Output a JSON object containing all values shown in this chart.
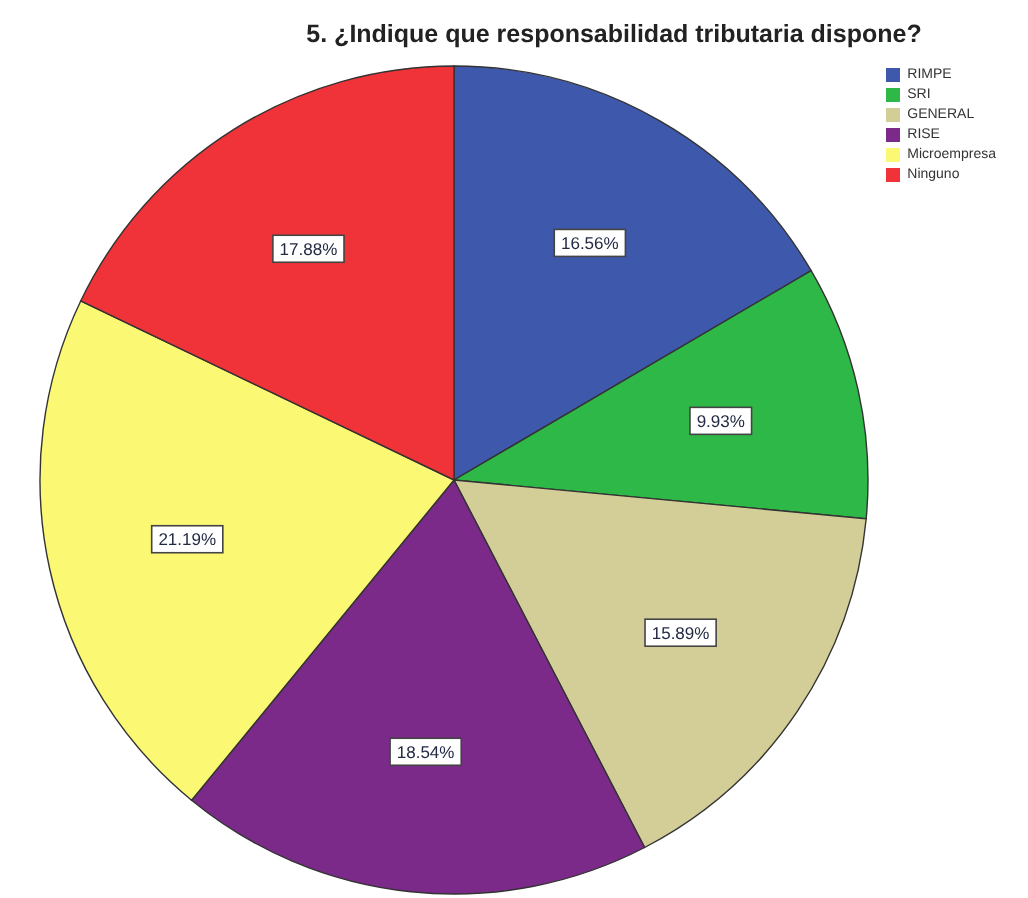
{
  "chart_data": {
    "type": "pie",
    "title": "5. ¿Indique que responsabilidad tributaria dispone?",
    "categories": [
      "RIMPE",
      "SRI",
      "GENERAL",
      "RISE",
      "Microempresa",
      "Ninguno"
    ],
    "values": [
      16.56,
      9.93,
      15.89,
      18.54,
      21.19,
      17.88
    ],
    "colors": [
      "#3e58ac",
      "#2eb848",
      "#d3ce97",
      "#7c2a8a",
      "#fbf873",
      "#ef3338"
    ],
    "value_labels": [
      "16.56%",
      "9.93%",
      "15.89%",
      "18.54%",
      "21.19%",
      "17.88%"
    ],
    "legend": "top right"
  }
}
